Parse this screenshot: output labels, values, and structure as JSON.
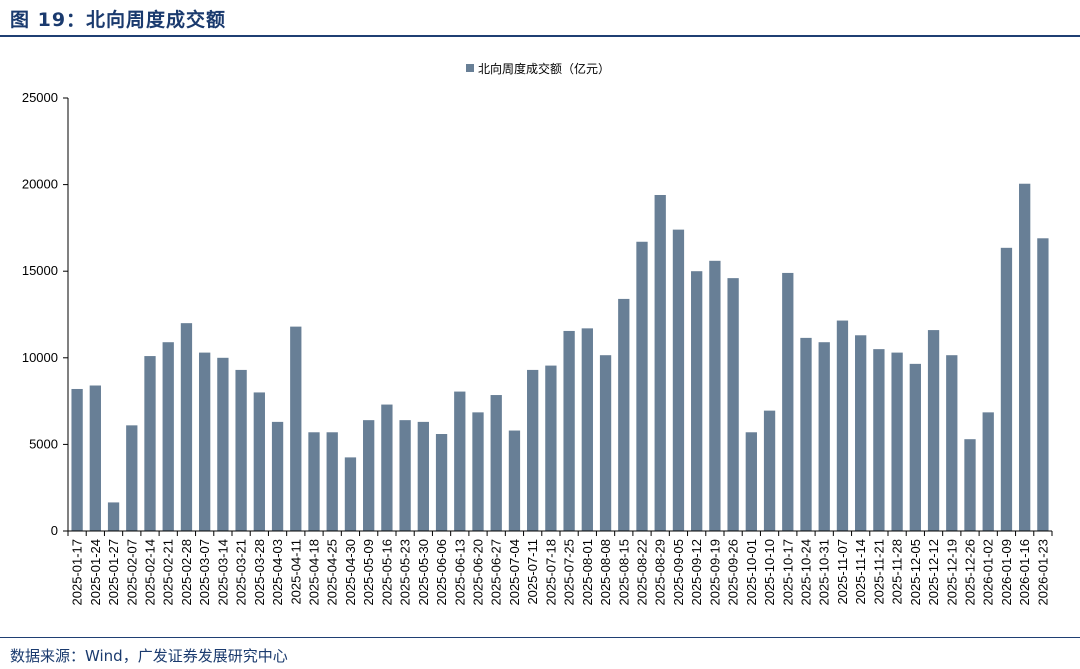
{
  "header": {
    "title": "图 19：北向周度成交额"
  },
  "footer": {
    "source": "数据来源：Wind，广发证券发展研究中心"
  },
  "colors": {
    "bar": "#687f96",
    "title": "#1a3a6e",
    "rule": "#1f3f73"
  },
  "chart_data": {
    "type": "bar",
    "title": "",
    "xlabel": "",
    "ylabel": "",
    "ylim": [
      0,
      25000
    ],
    "yticks": [
      0,
      5000,
      10000,
      15000,
      20000,
      25000
    ],
    "grid": false,
    "legend_position": "top-center",
    "categories": [
      "2025-01-17",
      "2025-01-24",
      "2025-01-27",
      "2025-02-07",
      "2025-02-14",
      "2025-02-21",
      "2025-02-28",
      "2025-03-07",
      "2025-03-14",
      "2025-03-21",
      "2025-03-28",
      "2025-04-03",
      "2025-04-11",
      "2025-04-18",
      "2025-04-25",
      "2025-04-30",
      "2025-05-09",
      "2025-05-16",
      "2025-05-23",
      "2025-05-30",
      "2025-06-06",
      "2025-06-13",
      "2025-06-20",
      "2025-06-27",
      "2025-07-04",
      "2025-07-11",
      "2025-07-18",
      "2025-07-25",
      "2025-08-01",
      "2025-08-08",
      "2025-08-15",
      "2025-08-22",
      "2025-08-29",
      "2025-09-05",
      "2025-09-12",
      "2025-09-19",
      "2025-09-26",
      "2025-10-01",
      "2025-10-10",
      "2025-10-17",
      "2025-10-24",
      "2025-10-31",
      "2025-11-07",
      "2025-11-14",
      "2025-11-21",
      "2025-11-28",
      "2025-12-05",
      "2025-12-12",
      "2025-12-19",
      "2025-12-26",
      "2026-01-02",
      "2026-01-09",
      "2026-01-16",
      "2026-01-23"
    ],
    "series": [
      {
        "name": "北向周度成交额（亿元）",
        "values": [
          8200,
          8400,
          1650,
          6100,
          10100,
          10900,
          12000,
          10300,
          10000,
          9300,
          8000,
          6300,
          11800,
          5700,
          5700,
          4250,
          6400,
          7300,
          6400,
          6300,
          5600,
          8050,
          6850,
          7850,
          5800,
          9300,
          9550,
          11550,
          11700,
          10150,
          13400,
          16700,
          19400,
          17400,
          15000,
          15600,
          14600,
          5700,
          6950,
          14900,
          11150,
          10900,
          12150,
          11300,
          10500,
          10300,
          9650,
          11600,
          10150,
          5300,
          6850,
          16350,
          20050,
          16900
        ]
      }
    ]
  }
}
